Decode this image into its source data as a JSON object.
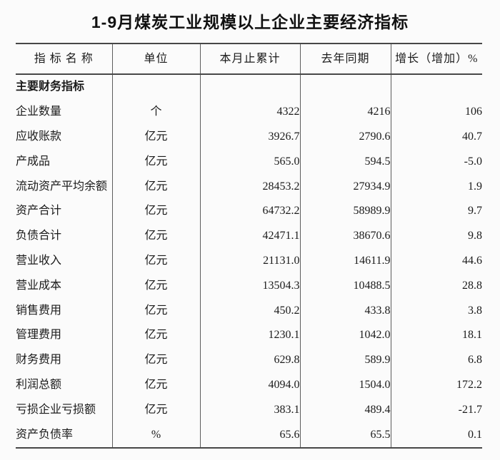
{
  "title": "1-9月煤炭工业规模以上企业主要经济指标",
  "table": {
    "columns": [
      {
        "label": "指 标 名 称"
      },
      {
        "label": "单位"
      },
      {
        "label": "本月止累计"
      },
      {
        "label": "去年同期"
      },
      {
        "label": "增长（增加）%"
      }
    ],
    "section_header": "主要财务指标",
    "rows": [
      {
        "name": "企业数量",
        "unit": "个",
        "current": "4322",
        "last_year": "4216",
        "growth": "106"
      },
      {
        "name": "应收账款",
        "unit": "亿元",
        "current": "3926.7",
        "last_year": "2790.6",
        "growth": "40.7"
      },
      {
        "name": "产成品",
        "unit": "亿元",
        "current": "565.0",
        "last_year": "594.5",
        "growth": "-5.0"
      },
      {
        "name": "流动资产平均余额",
        "unit": "亿元",
        "current": "28453.2",
        "last_year": "27934.9",
        "growth": "1.9"
      },
      {
        "name": "资产合计",
        "unit": "亿元",
        "current": "64732.2",
        "last_year": "58989.9",
        "growth": "9.7"
      },
      {
        "name": "负债合计",
        "unit": "亿元",
        "current": "42471.1",
        "last_year": "38670.6",
        "growth": "9.8"
      },
      {
        "name": "营业收入",
        "unit": "亿元",
        "current": "21131.0",
        "last_year": "14611.9",
        "growth": "44.6"
      },
      {
        "name": "营业成本",
        "unit": "亿元",
        "current": "13504.3",
        "last_year": "10488.5",
        "growth": "28.8"
      },
      {
        "name": "销售费用",
        "unit": "亿元",
        "current": "450.2",
        "last_year": "433.8",
        "growth": "3.8"
      },
      {
        "name": "管理费用",
        "unit": "亿元",
        "current": "1230.1",
        "last_year": "1042.0",
        "growth": "18.1"
      },
      {
        "name": "财务费用",
        "unit": "亿元",
        "current": "629.8",
        "last_year": "589.9",
        "growth": "6.8"
      },
      {
        "name": "利润总额",
        "unit": "亿元",
        "current": "4094.0",
        "last_year": "1504.0",
        "growth": "172.2"
      },
      {
        "name": "亏损企业亏损额",
        "unit": "亿元",
        "current": "383.1",
        "last_year": "489.4",
        "growth": "-21.7"
      },
      {
        "name": "资产负债率",
        "unit": "%",
        "current": "65.6",
        "last_year": "65.5",
        "growth": "0.1"
      }
    ]
  },
  "colors": {
    "background": "#fbfbfb",
    "text": "#1b1b1b",
    "border_horizontal": "#474747",
    "border_vertical": "#5c5c5c"
  }
}
